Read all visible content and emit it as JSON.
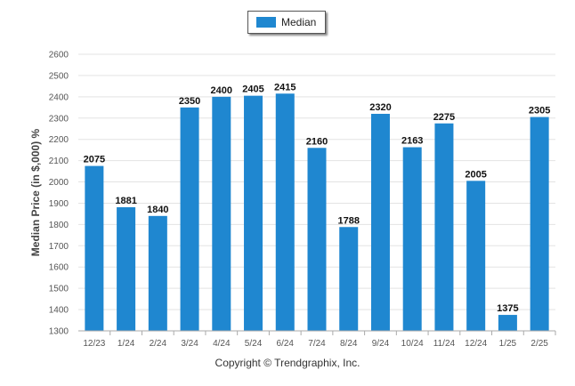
{
  "legend": {
    "label": "Median",
    "color": "#1f87d0"
  },
  "copyright": "Copyright © Trendgraphix, Inc.",
  "chart_data": {
    "type": "bar",
    "title": "",
    "xlabel": "",
    "ylabel": "Median Price (in $,000) %",
    "ylim": [
      1300,
      2600
    ],
    "yticks": [
      1300,
      1400,
      1500,
      1600,
      1700,
      1800,
      1900,
      2000,
      2100,
      2200,
      2300,
      2400,
      2500,
      2600
    ],
    "grid": true,
    "legend_position": "top-center",
    "categories": [
      "12/23",
      "1/24",
      "2/24",
      "3/24",
      "4/24",
      "5/24",
      "6/24",
      "7/24",
      "8/24",
      "9/24",
      "10/24",
      "11/24",
      "12/24",
      "1/25",
      "2/25"
    ],
    "series": [
      {
        "name": "Median",
        "color": "#1f87d0",
        "values": [
          2075,
          1881,
          1840,
          2350,
          2400,
          2405,
          2415,
          2160,
          1788,
          2320,
          2163,
          2275,
          2005,
          1375,
          2305
        ]
      }
    ]
  }
}
